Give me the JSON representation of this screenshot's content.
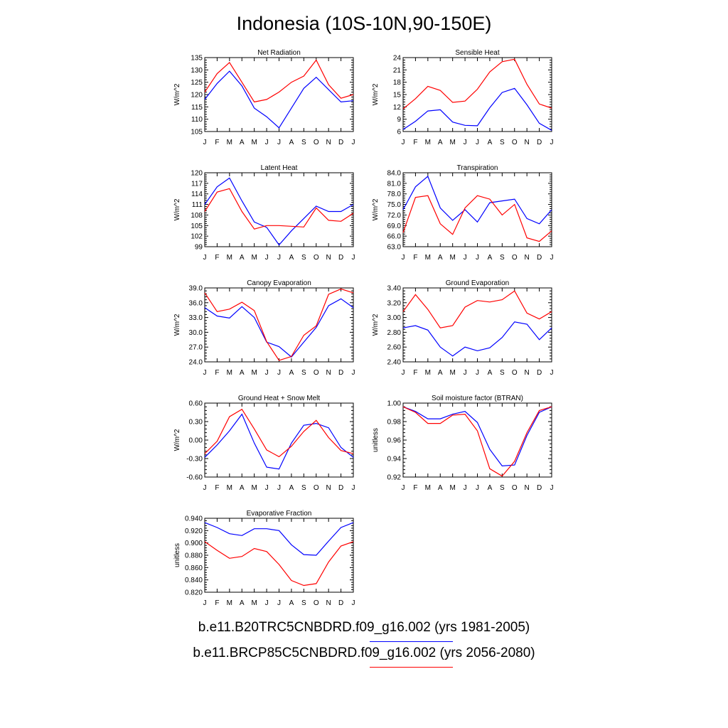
{
  "page_title": "Indonesia (10S-10N,90-150E)",
  "legend": [
    {
      "label": "b.e11.B20TRC5CNBDRD.f09_g16.002 (yrs 1981-2005)",
      "color": "#0000ff"
    },
    {
      "label": "b.e11.BRCP85C5CNBDRD.f09_g16.002 (yrs 2056-2080)",
      "color": "#ff0000"
    }
  ],
  "chart_data": [
    {
      "type": "line",
      "title": "Net Radiation",
      "ylabel": "W/m^2",
      "categories": [
        "J",
        "F",
        "M",
        "A",
        "M",
        "J",
        "J",
        "A",
        "S",
        "O",
        "N",
        "D",
        "J"
      ],
      "ylim": [
        105,
        135
      ],
      "yticks": [
        "105",
        "110",
        "115",
        "120",
        "125",
        "130",
        "135"
      ],
      "series": [
        {
          "color": "#0000ff",
          "values": [
            118,
            124.5,
            129.5,
            123.5,
            114.5,
            111,
            106.5,
            114.5,
            122.5,
            127,
            122,
            117,
            117.5
          ]
        },
        {
          "color": "#ff0000",
          "values": [
            121,
            128.5,
            133,
            125,
            117,
            118,
            121,
            125,
            127.5,
            134,
            124,
            118.5,
            120
          ]
        }
      ]
    },
    {
      "type": "line",
      "title": "Sensible Heat",
      "ylabel": "W/m^2",
      "categories": [
        "J",
        "F",
        "M",
        "A",
        "M",
        "J",
        "J",
        "A",
        "S",
        "O",
        "N",
        "D",
        "J"
      ],
      "ylim": [
        6,
        24
      ],
      "yticks": [
        "6",
        "9",
        "12",
        "15",
        "18",
        "21",
        "24"
      ],
      "series": [
        {
          "color": "#0000ff",
          "values": [
            6.5,
            8.5,
            11,
            11.3,
            8.3,
            7.5,
            7.4,
            11.8,
            15.5,
            16.5,
            12.5,
            8,
            6.3
          ]
        },
        {
          "color": "#ff0000",
          "values": [
            11.5,
            14,
            17,
            16,
            13.1,
            13.4,
            16.3,
            20.5,
            23,
            23.6,
            17.5,
            12.7,
            11.7
          ]
        }
      ]
    },
    {
      "type": "line",
      "title": "Latent Heat",
      "ylabel": "W/m^2",
      "categories": [
        "J",
        "F",
        "M",
        "A",
        "M",
        "J",
        "J",
        "A",
        "S",
        "O",
        "N",
        "D",
        "J"
      ],
      "ylim": [
        99,
        120
      ],
      "yticks": [
        "99",
        "102",
        "105",
        "108",
        "111",
        "114",
        "117",
        "120"
      ],
      "series": [
        {
          "color": "#0000ff",
          "values": [
            111,
            116,
            118.5,
            112,
            106,
            104.5,
            99.5,
            103.5,
            107,
            110.5,
            109,
            109,
            111
          ]
        },
        {
          "color": "#ff0000",
          "values": [
            109,
            114.5,
            115.5,
            109,
            104,
            105,
            105,
            104.8,
            104.6,
            110,
            106.5,
            106.2,
            108.5
          ]
        }
      ]
    },
    {
      "type": "line",
      "title": "Transpiration",
      "ylabel": "W/m^2",
      "categories": [
        "J",
        "F",
        "M",
        "A",
        "M",
        "J",
        "J",
        "A",
        "S",
        "O",
        "N",
        "D",
        "J"
      ],
      "ylim": [
        63,
        84
      ],
      "yticks": [
        "63.0",
        "66.0",
        "69.0",
        "72.0",
        "75.0",
        "78.0",
        "81.0",
        "84.0"
      ],
      "series": [
        {
          "color": "#0000ff",
          "values": [
            73.5,
            80,
            83,
            74,
            70.5,
            73.5,
            70,
            75.5,
            76,
            76.5,
            71,
            69.5,
            73.5
          ]
        },
        {
          "color": "#ff0000",
          "values": [
            67,
            77,
            77.5,
            69.5,
            66.5,
            74,
            77.5,
            76.5,
            72,
            75,
            65.5,
            64.5,
            67.5
          ]
        }
      ]
    },
    {
      "type": "line",
      "title": "Canopy Evaporation",
      "ylabel": "W/m^2",
      "categories": [
        "J",
        "F",
        "M",
        "A",
        "M",
        "J",
        "J",
        "A",
        "S",
        "O",
        "N",
        "D",
        "J"
      ],
      "ylim": [
        24,
        39
      ],
      "yticks": [
        "24.0",
        "27.0",
        "30.0",
        "33.0",
        "36.0",
        "39.0"
      ],
      "series": [
        {
          "color": "#0000ff",
          "values": [
            35,
            33.3,
            32.9,
            35.2,
            33,
            28,
            27.1,
            25,
            28,
            31,
            35.4,
            36.8,
            35
          ]
        },
        {
          "color": "#ff0000",
          "values": [
            38,
            34.2,
            34.7,
            36.1,
            34.4,
            28.1,
            24.3,
            25.1,
            29.4,
            31.3,
            37.7,
            38.8,
            38
          ]
        }
      ]
    },
    {
      "type": "line",
      "title": "Ground Evaporation",
      "ylabel": "W/m^2",
      "categories": [
        "J",
        "F",
        "M",
        "A",
        "M",
        "J",
        "J",
        "A",
        "S",
        "O",
        "N",
        "D",
        "J"
      ],
      "ylim": [
        2.4,
        3.4
      ],
      "yticks": [
        "2.40",
        "2.60",
        "2.80",
        "3.00",
        "3.20",
        "3.40"
      ],
      "series": [
        {
          "color": "#0000ff",
          "values": [
            2.86,
            2.89,
            2.83,
            2.6,
            2.48,
            2.6,
            2.55,
            2.59,
            2.73,
            2.94,
            2.91,
            2.7,
            2.86
          ]
        },
        {
          "color": "#ff0000",
          "values": [
            3.08,
            3.31,
            3.11,
            2.86,
            2.89,
            3.14,
            3.23,
            3.21,
            3.24,
            3.36,
            3.06,
            2.98,
            3.08
          ]
        }
      ]
    },
    {
      "type": "line",
      "title": "Ground Heat + Snow Melt",
      "ylabel": "W/m^2",
      "categories": [
        "J",
        "F",
        "M",
        "A",
        "M",
        "J",
        "J",
        "A",
        "S",
        "O",
        "N",
        "D",
        "J"
      ],
      "ylim": [
        -0.6,
        0.6
      ],
      "yticks": [
        "-0.60",
        "-0.30",
        "0.00",
        "0.30",
        "0.60"
      ],
      "series": [
        {
          "color": "#0000ff",
          "values": [
            -0.28,
            -0.08,
            0.15,
            0.42,
            -0.05,
            -0.44,
            -0.47,
            -0.05,
            0.24,
            0.27,
            0.2,
            -0.12,
            -0.28
          ]
        },
        {
          "color": "#ff0000",
          "values": [
            -0.22,
            -0.02,
            0.38,
            0.5,
            0.18,
            -0.16,
            -0.27,
            -0.1,
            0.14,
            0.32,
            0.04,
            -0.17,
            -0.22
          ]
        }
      ]
    },
    {
      "type": "line",
      "title": "Soil moisture factor (BTRAN)",
      "ylabel": "unitless",
      "categories": [
        "J",
        "F",
        "M",
        "A",
        "M",
        "J",
        "J",
        "A",
        "S",
        "O",
        "N",
        "D",
        "J"
      ],
      "ylim": [
        0.92,
        1.0
      ],
      "yticks": [
        "0.92",
        "0.94",
        "0.96",
        "0.98",
        "1.00"
      ],
      "series": [
        {
          "color": "#0000ff",
          "values": [
            0.996,
            0.991,
            0.983,
            0.983,
            0.988,
            0.991,
            0.979,
            0.95,
            0.932,
            0.933,
            0.965,
            0.99,
            0.996
          ]
        },
        {
          "color": "#ff0000",
          "values": [
            0.996,
            0.99,
            0.978,
            0.978,
            0.987,
            0.988,
            0.97,
            0.929,
            0.921,
            0.937,
            0.968,
            0.992,
            0.996
          ]
        }
      ]
    },
    {
      "type": "line",
      "title": "Evaporative Fraction",
      "ylabel": "unitless",
      "categories": [
        "J",
        "F",
        "M",
        "A",
        "M",
        "J",
        "J",
        "A",
        "S",
        "O",
        "N",
        "D",
        "J"
      ],
      "ylim": [
        0.82,
        0.94
      ],
      "yticks": [
        "0.820",
        "0.840",
        "0.860",
        "0.880",
        "0.900",
        "0.920",
        "0.940"
      ],
      "series": [
        {
          "color": "#0000ff",
          "values": [
            0.933,
            0.925,
            0.915,
            0.912,
            0.923,
            0.923,
            0.92,
            0.897,
            0.881,
            0.88,
            0.903,
            0.925,
            0.933
          ]
        },
        {
          "color": "#ff0000",
          "values": [
            0.902,
            0.888,
            0.875,
            0.878,
            0.891,
            0.886,
            0.865,
            0.839,
            0.831,
            0.834,
            0.869,
            0.895,
            0.902
          ]
        }
      ]
    }
  ]
}
